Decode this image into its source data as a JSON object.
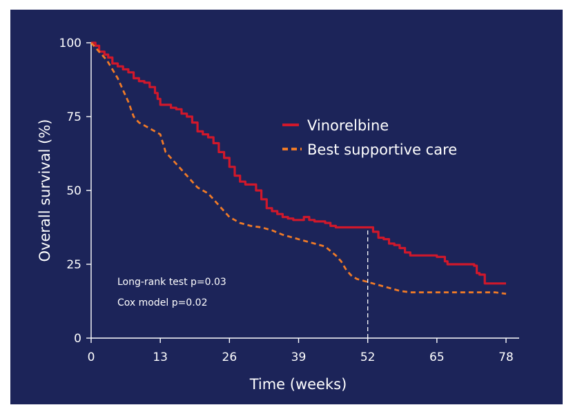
{
  "chart_data": {
    "type": "line",
    "title": "",
    "xlabel": "Time (weeks)",
    "ylabel": "Overall survival (%)",
    "xlim": [
      0,
      78
    ],
    "ylim": [
      0,
      100
    ],
    "xticks": [
      0,
      13,
      26,
      39,
      52,
      65,
      78
    ],
    "yticks": [
      0,
      25,
      50,
      75,
      100
    ],
    "grid": false,
    "legend_position": "upper-right",
    "reference_line_x": 52,
    "annotations": [
      "Long-rank test p=0.03",
      "Cox model p=0.02"
    ],
    "colors": {
      "background": "#1c2459",
      "axis": "#ffffff",
      "vinorelbine": "#d0182b",
      "bsc": "#ef7a27"
    },
    "series": [
      {
        "name": "Vinorelbine",
        "style": "solid",
        "step": true,
        "x": [
          0,
          0.8,
          1.5,
          2.5,
          3.2,
          4,
          5,
          6,
          7,
          8,
          9,
          10,
          11,
          12,
          12.5,
          13,
          14,
          15,
          16,
          17,
          18,
          19,
          20,
          21,
          22,
          23,
          24,
          25,
          26,
          27,
          28,
          29,
          30,
          31,
          32,
          33,
          34,
          35,
          36,
          37,
          38,
          39,
          40,
          41,
          42,
          43,
          44,
          45,
          46,
          47,
          48,
          49,
          50,
          51,
          52,
          53,
          54,
          55,
          56,
          57,
          58,
          59,
          60,
          61,
          62,
          63,
          64,
          65,
          66,
          66.5,
          67,
          68,
          69,
          70,
          71,
          72,
          72.5,
          73,
          74,
          75,
          76,
          77,
          78
        ],
        "y": [
          100,
          99,
          97,
          96,
          95,
          93,
          92,
          91,
          90,
          88,
          87,
          86.5,
          85,
          83,
          81,
          79,
          79,
          78,
          77.5,
          76,
          75,
          73,
          70,
          69,
          68,
          66,
          63,
          61,
          58,
          55,
          53,
          52,
          52,
          50,
          47,
          44,
          43,
          42,
          41,
          40.5,
          40,
          40,
          41,
          40,
          39.5,
          39.5,
          39,
          38,
          37.5,
          37.5,
          37.5,
          37.5,
          37.5,
          37.5,
          37.5,
          36,
          34,
          33.5,
          32,
          31.5,
          30.5,
          29,
          28,
          28,
          28,
          28,
          28,
          27.5,
          27.5,
          26,
          25,
          25,
          25,
          25,
          25,
          24.5,
          22,
          21.5,
          18.5,
          18.5,
          18.5,
          18.5,
          18.5
        ]
      },
      {
        "name": "Best supportive care",
        "style": "dashed",
        "step": false,
        "x": [
          0,
          1,
          2,
          3,
          4,
          5,
          6,
          7,
          8,
          9,
          10,
          11,
          12,
          13,
          14,
          15,
          16,
          17,
          18,
          19,
          20,
          21,
          22,
          23,
          24,
          25,
          26,
          27,
          28,
          29,
          30,
          32,
          34,
          36,
          38,
          40,
          42,
          44,
          46,
          47,
          48,
          49,
          50,
          51,
          52,
          54,
          56,
          58,
          60,
          62,
          64,
          66,
          68,
          70,
          72,
          74,
          76,
          78
        ],
        "y": [
          100,
          98,
          96,
          94,
          91,
          88,
          84,
          80,
          75,
          73,
          72,
          71,
          70,
          69,
          63,
          61,
          59,
          57,
          55,
          53,
          51,
          50,
          49,
          47,
          45,
          43,
          41,
          40,
          39,
          38.5,
          38,
          37.5,
          36.5,
          35,
          34,
          33,
          32,
          31,
          28,
          26,
          23,
          21,
          20,
          19.5,
          19,
          18,
          17,
          16,
          15.5,
          15.5,
          15.5,
          15.5,
          15.5,
          15.5,
          15.5,
          15.5,
          15.5,
          15
        ]
      }
    ]
  }
}
